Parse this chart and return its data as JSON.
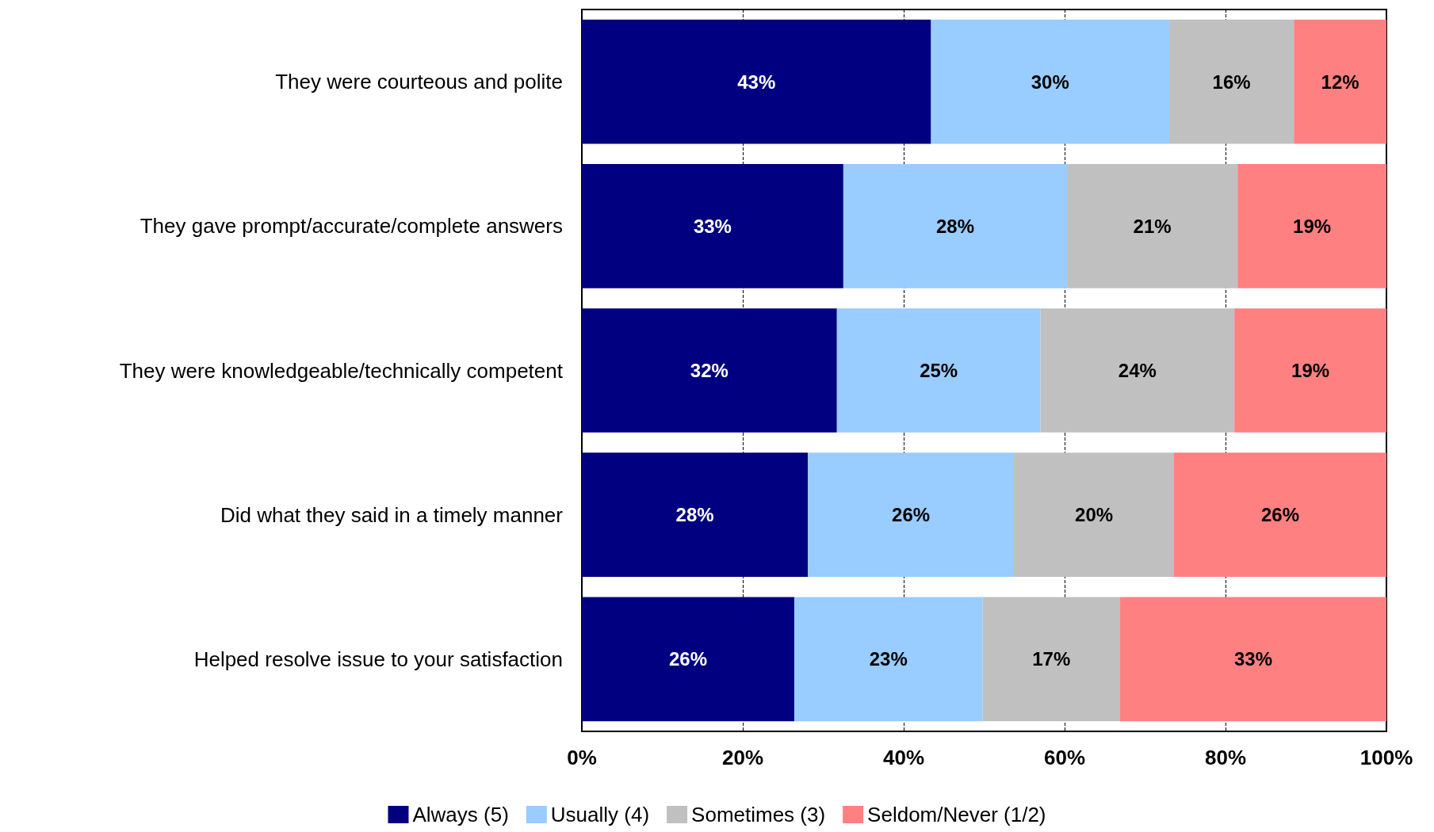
{
  "chart_data": {
    "type": "bar",
    "orientation": "horizontal",
    "stacked": true,
    "categories": [
      "They were courteous and polite",
      "They gave prompt/accurate/complete answers",
      "They were knowledgeable/technically competent",
      "Did what they said in a timely manner",
      "Helped resolve issue to your satisfaction"
    ],
    "series": [
      {
        "name": "Always (5)",
        "color": "#000080",
        "values": [
          43.4,
          32.5,
          31.7,
          28.1,
          26.4
        ],
        "value_labels": [
          "43%",
          "33%",
          "32%",
          "28%",
          "26%"
        ]
      },
      {
        "name": "Usually (4)",
        "color": "#99ccff",
        "values": [
          29.6,
          27.8,
          25.3,
          25.6,
          23.4
        ],
        "value_labels": [
          "30%",
          "28%",
          "25%",
          "26%",
          "23%"
        ]
      },
      {
        "name": "Sometimes (3)",
        "color": "#c0c0c0",
        "values": [
          15.5,
          21.2,
          24.1,
          19.9,
          17.1
        ],
        "value_labels": [
          "16%",
          "21%",
          "24%",
          "20%",
          "17%"
        ]
      },
      {
        "name": "Seldom/Never (1/2)",
        "color": "#ff8080",
        "values": [
          11.5,
          18.5,
          18.9,
          26.4,
          33.1
        ],
        "value_labels": [
          "12%",
          "19%",
          "19%",
          "26%",
          "33%"
        ]
      }
    ],
    "xlim": [
      0,
      100
    ],
    "xticks": [
      {
        "value": 0,
        "label": "0%"
      },
      {
        "value": 20,
        "label": "20%"
      },
      {
        "value": 40,
        "label": "40%"
      },
      {
        "value": 60,
        "label": "60%"
      },
      {
        "value": 80,
        "label": "80%"
      },
      {
        "value": 100,
        "label": "100%"
      }
    ],
    "grid": "x",
    "legend": "bottom"
  }
}
